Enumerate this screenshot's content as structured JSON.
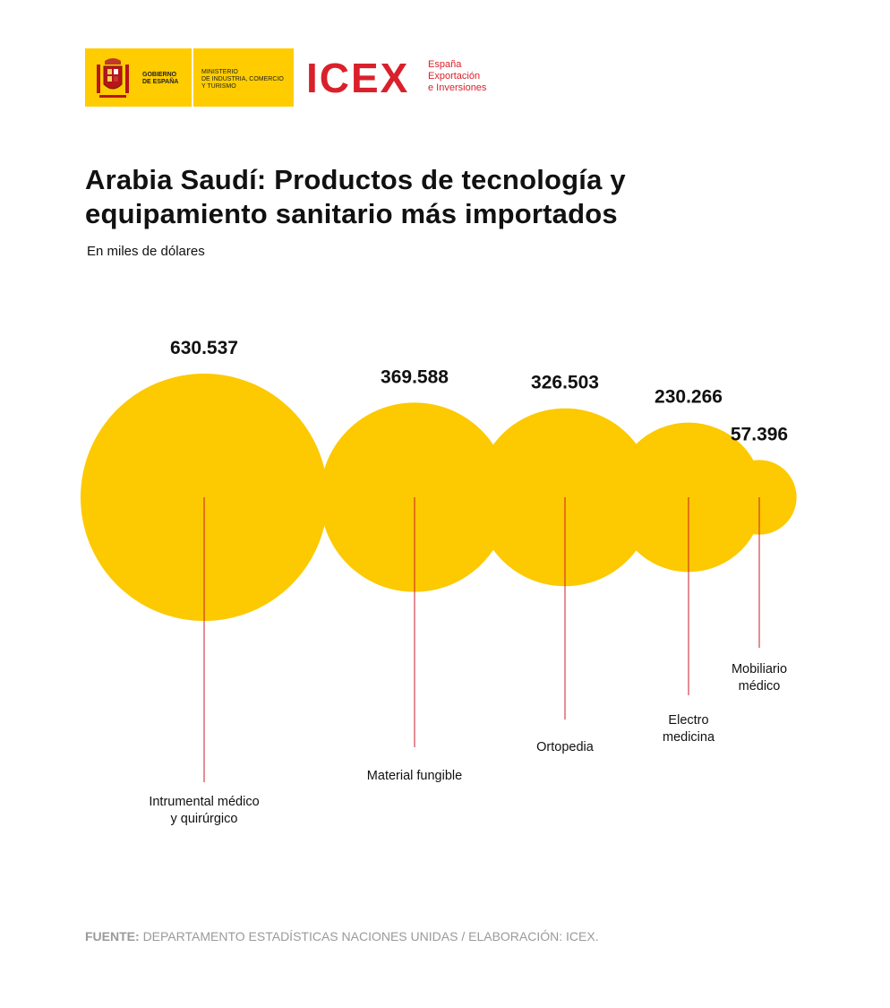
{
  "header": {
    "gov_label": "GOBIERNO\nDE ESPAÑA",
    "ministry_label": "MINISTERIO\nDE INDUSTRIA, COMERCIO\nY TURISMO",
    "icex_logo": "ICEX",
    "icex_tagline": "España\nExportación\ne Inversiones"
  },
  "colors": {
    "accent": "#ffcc00",
    "bubble": "#fdc900",
    "leader": "#c81e2c",
    "brand_red": "#d9212b",
    "source_grey": "#9a9a9a"
  },
  "chart_data": {
    "type": "bubble",
    "title": "Arabia Saudí: Productos de tecnología y\nequipamiento sanitario más importados",
    "subtitle": "En miles de dólares",
    "categories": [
      "Intrumental médico\ny quirúrgico",
      "Material fungible",
      "Ortopedia",
      "Electro\nmedicina",
      "Mobiliario\nmédico"
    ],
    "values": [
      630537,
      369588,
      326503,
      230266,
      57396
    ],
    "value_labels": [
      "630.537",
      "369.588",
      "326.503",
      "230.266",
      "57.396"
    ]
  },
  "footer": {
    "source_label": "FUENTE:",
    "source_text": "DEPARTAMENTO ESTADÍSTICAS NACIONES UNIDAS / ELABORACIÓN: ICEX."
  }
}
